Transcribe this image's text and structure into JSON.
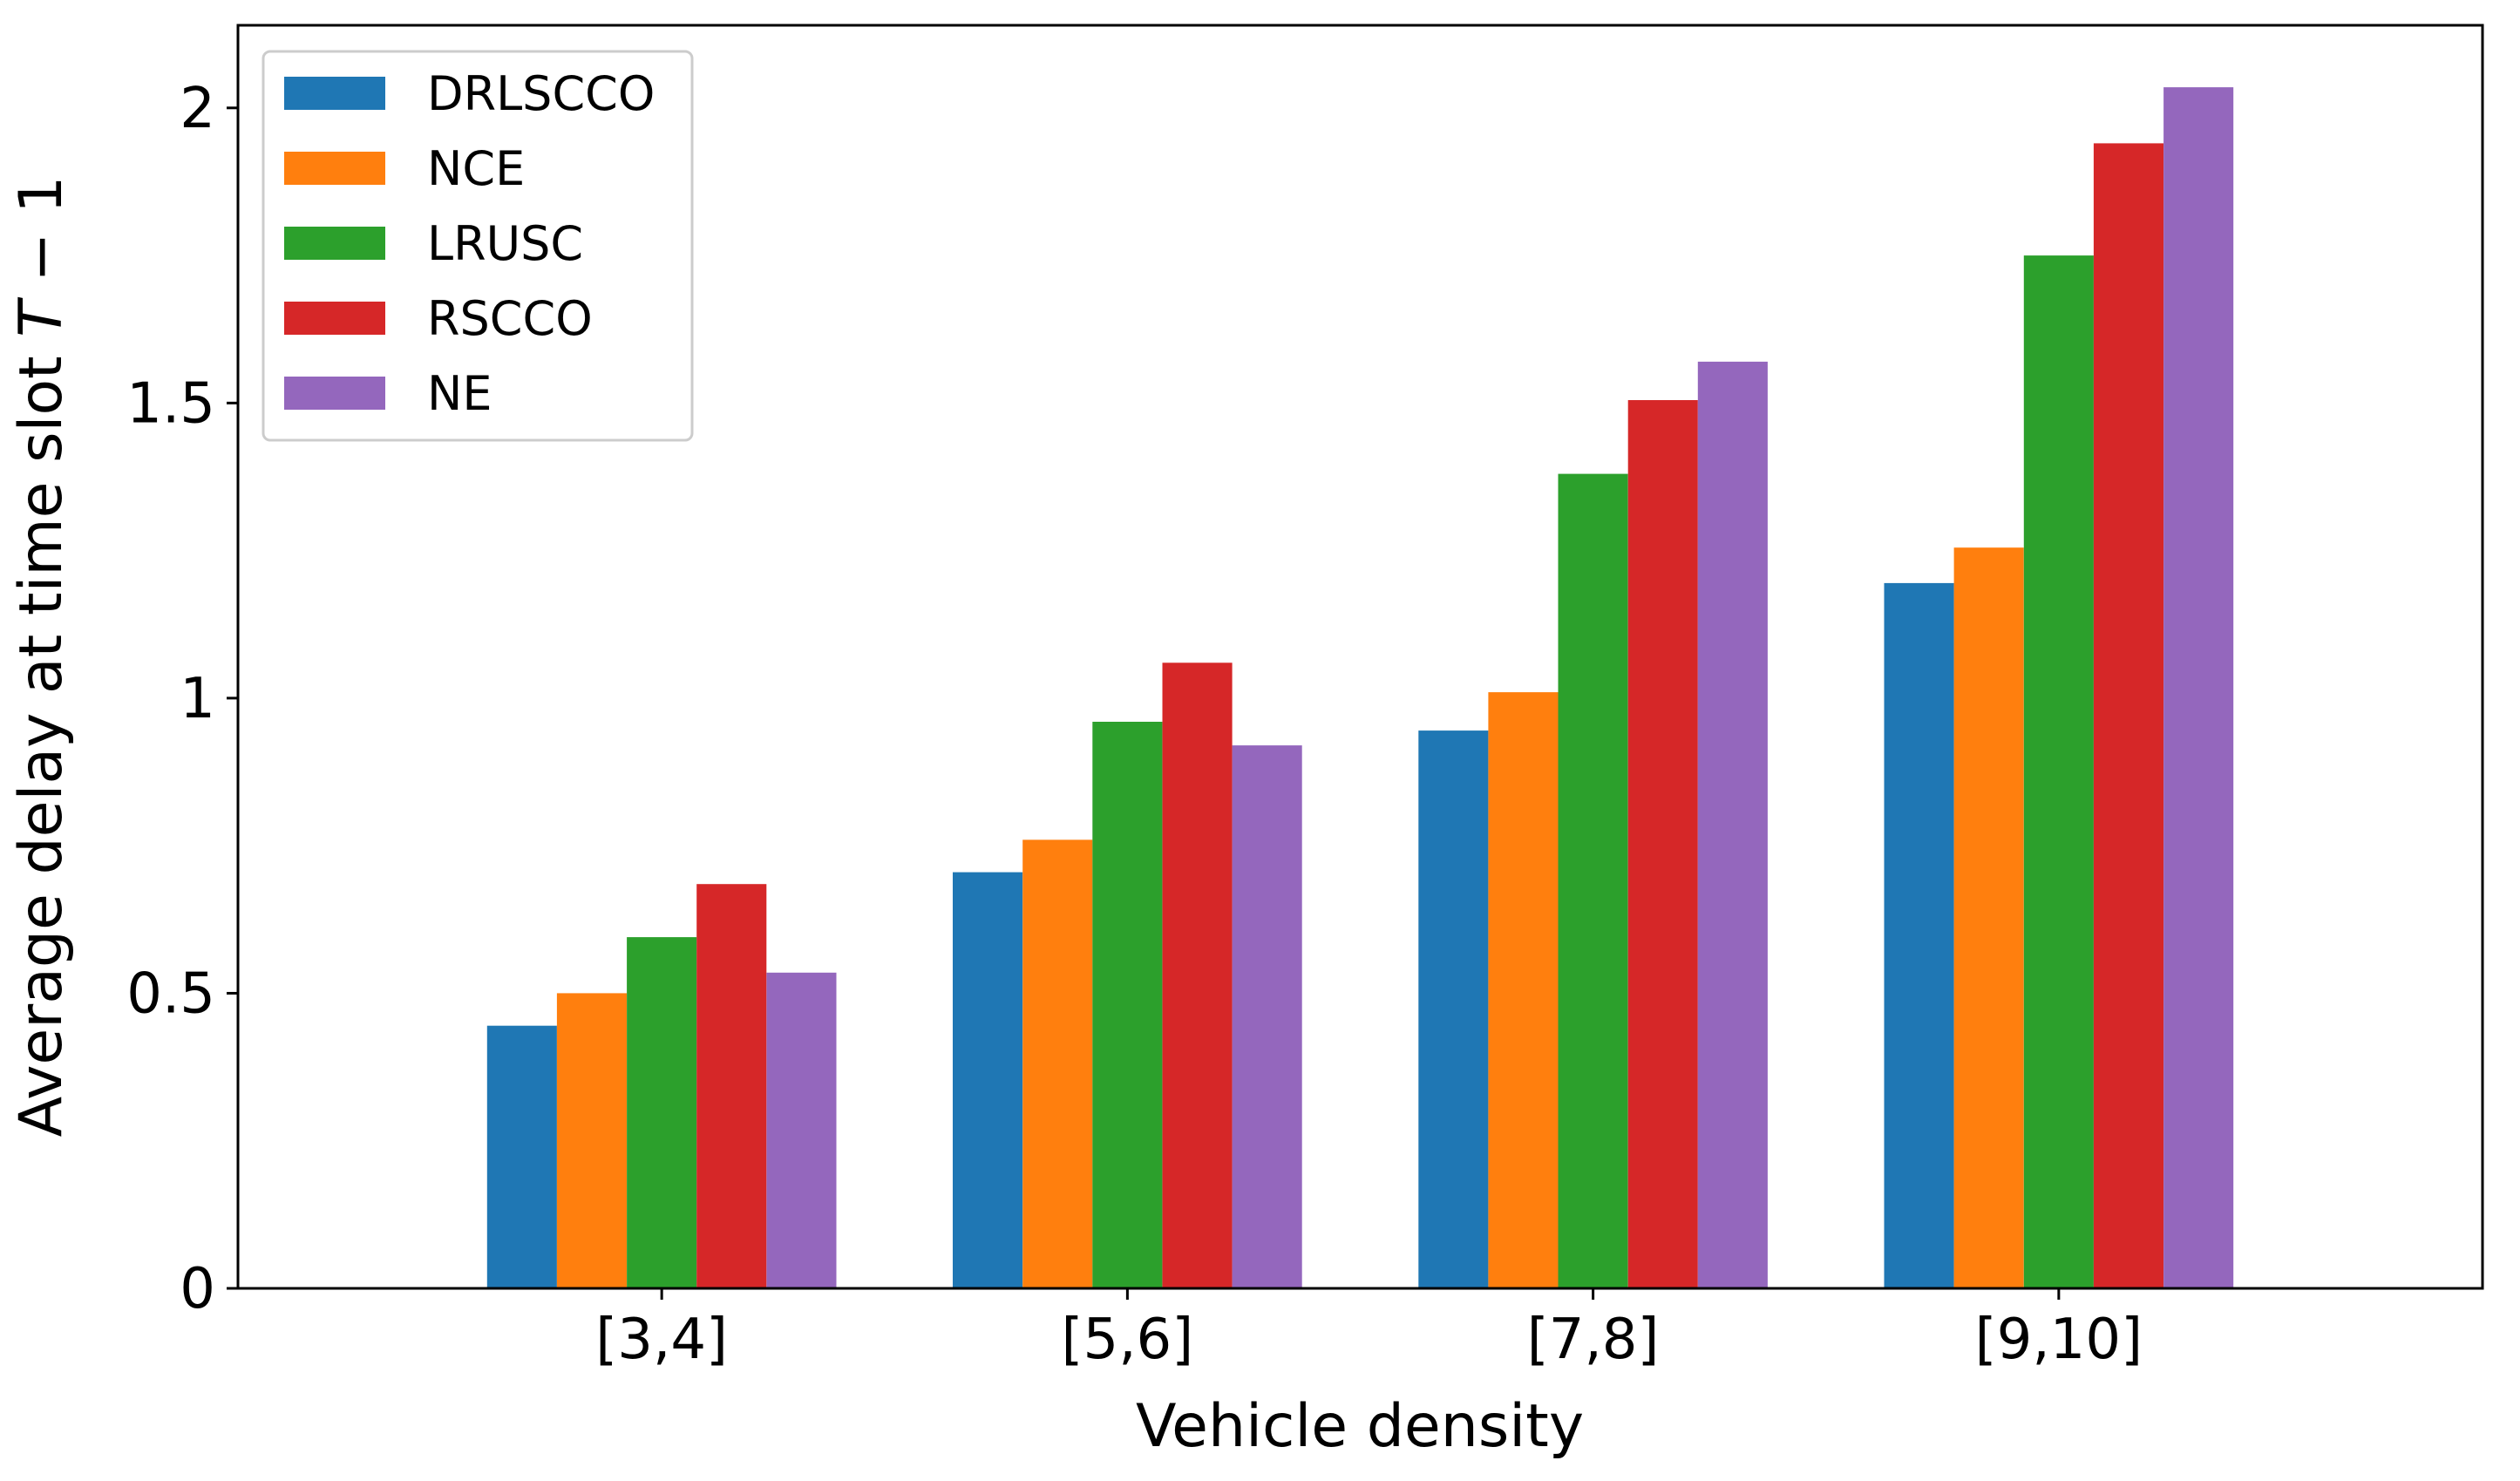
{
  "chart_data": {
    "type": "bar",
    "title": "",
    "xlabel": "Vehicle density",
    "ylabel": "Average delay at time slot T − 1",
    "categories": [
      "[3,4]",
      "[5,6]",
      "[7,8]",
      "[9,10]"
    ],
    "series": [
      {
        "name": "DRLSCCO",
        "color": "#1f77b4",
        "values": [
          0.445,
          0.705,
          0.945,
          1.195
        ]
      },
      {
        "name": "NCE",
        "color": "#ff7f0e",
        "values": [
          0.5,
          0.76,
          1.01,
          1.255
        ]
      },
      {
        "name": "LRUSC",
        "color": "#2ca02c",
        "values": [
          0.595,
          0.96,
          1.38,
          1.75
        ]
      },
      {
        "name": "RSCCO",
        "color": "#d62728",
        "values": [
          0.685,
          1.06,
          1.505,
          1.94
        ]
      },
      {
        "name": "NE",
        "color": "#9467bd",
        "values": [
          0.535,
          0.92,
          1.57,
          2.035
        ]
      }
    ],
    "ylim": [
      0,
      2.14
    ],
    "yticks": [
      0,
      0.5,
      1,
      1.5,
      2
    ],
    "ytick_labels": [
      "0",
      "0.5",
      "1",
      "1.5",
      "2"
    ],
    "grid": false,
    "legend_position": "top-left"
  }
}
